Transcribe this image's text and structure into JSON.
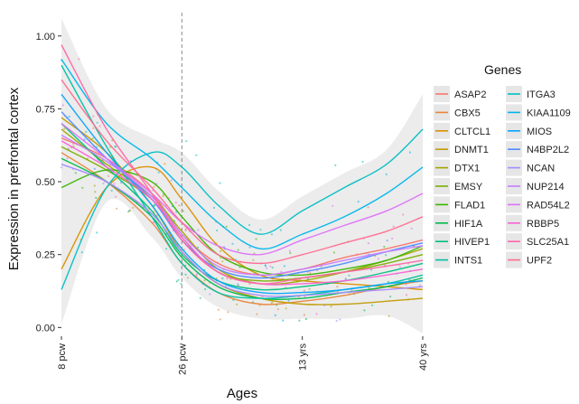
{
  "chart_data": {
    "type": "line",
    "xlabel": "Ages",
    "ylabel": "Expression in prefrontal cortex",
    "legend_title": "Genes",
    "legend_placement": "right",
    "grid": true,
    "x_ticks": [
      "8 pcw",
      "26 pcw",
      "13 yrs",
      "40 yrs"
    ],
    "x_tick_positions": [
      0,
      1,
      2,
      3
    ],
    "xlim": [
      0,
      3
    ],
    "ylim": [
      -0.03,
      1.08
    ],
    "y_ticks": [
      "0.00",
      "0.25",
      "0.50",
      "0.75",
      "1.00"
    ],
    "y_tick_values": [
      0,
      0.25,
      0.5,
      0.75,
      1.0
    ],
    "reference_line": {
      "x": 1,
      "style": "dashed"
    },
    "x": [
      0,
      0.375,
      0.75,
      1.0,
      1.3,
      1.65,
      2.0,
      2.35,
      2.7,
      3.0
    ],
    "series": [
      {
        "name": "ASAP2",
        "color": "#f8766d",
        "values": [
          0.65,
          0.58,
          0.46,
          0.32,
          0.22,
          0.18,
          0.2,
          0.24,
          0.27,
          0.3
        ]
      },
      {
        "name": "CBX5",
        "color": "#e8853a",
        "values": [
          0.6,
          0.5,
          0.36,
          0.22,
          0.12,
          0.08,
          0.09,
          0.11,
          0.14,
          0.16
        ]
      },
      {
        "name": "CLTCL1",
        "color": "#d89000",
        "values": [
          0.2,
          0.48,
          0.55,
          0.44,
          0.28,
          0.18,
          0.16,
          0.15,
          0.14,
          0.13
        ]
      },
      {
        "name": "DNMT1",
        "color": "#c09b00",
        "values": [
          0.72,
          0.6,
          0.42,
          0.26,
          0.15,
          0.1,
          0.08,
          0.08,
          0.09,
          0.1
        ]
      },
      {
        "name": "DTX1",
        "color": "#a3a500",
        "values": [
          0.68,
          0.56,
          0.45,
          0.33,
          0.2,
          0.15,
          0.16,
          0.19,
          0.23,
          0.27
        ]
      },
      {
        "name": "EMSY",
        "color": "#7cae00",
        "values": [
          0.62,
          0.54,
          0.44,
          0.31,
          0.19,
          0.16,
          0.17,
          0.19,
          0.22,
          0.25
        ]
      },
      {
        "name": "FLAD1",
        "color": "#39b600",
        "values": [
          0.48,
          0.54,
          0.5,
          0.38,
          0.25,
          0.19,
          0.18,
          0.2,
          0.23,
          0.28
        ]
      },
      {
        "name": "HIF1A",
        "color": "#00bb4e",
        "values": [
          0.58,
          0.5,
          0.38,
          0.24,
          0.14,
          0.1,
          0.1,
          0.12,
          0.14,
          0.17
        ]
      },
      {
        "name": "HIVEP1",
        "color": "#00bf7d",
        "values": [
          0.7,
          0.55,
          0.4,
          0.25,
          0.16,
          0.13,
          0.14,
          0.16,
          0.19,
          0.22
        ]
      },
      {
        "name": "INTS1",
        "color": "#00c1a3",
        "values": [
          0.9,
          0.62,
          0.38,
          0.22,
          0.12,
          0.1,
          0.11,
          0.13,
          0.15,
          0.18
        ]
      },
      {
        "name": "ITGA3",
        "color": "#00bfc4",
        "values": [
          0.13,
          0.48,
          0.6,
          0.55,
          0.42,
          0.32,
          0.4,
          0.48,
          0.56,
          0.68
        ]
      },
      {
        "name": "KIAA1109",
        "color": "#00b6eb",
        "values": [
          0.92,
          0.7,
          0.58,
          0.48,
          0.36,
          0.27,
          0.32,
          0.38,
          0.46,
          0.55
        ]
      },
      {
        "name": "MIOS",
        "color": "#06a4ff",
        "values": [
          0.8,
          0.6,
          0.42,
          0.27,
          0.16,
          0.12,
          0.12,
          0.13,
          0.15,
          0.16
        ]
      },
      {
        "name": "N4BP2L2",
        "color": "#4f8cff",
        "values": [
          0.74,
          0.58,
          0.44,
          0.3,
          0.2,
          0.17,
          0.19,
          0.22,
          0.26,
          0.29
        ]
      },
      {
        "name": "NCAN",
        "color": "#a58aff",
        "values": [
          0.56,
          0.5,
          0.39,
          0.26,
          0.15,
          0.11,
          0.11,
          0.12,
          0.13,
          0.14
        ]
      },
      {
        "name": "NUP214",
        "color": "#c77cff",
        "values": [
          0.66,
          0.57,
          0.45,
          0.32,
          0.21,
          0.18,
          0.2,
          0.23,
          0.26,
          0.28
        ]
      },
      {
        "name": "RAD54L2",
        "color": "#df70f8",
        "values": [
          0.7,
          0.58,
          0.46,
          0.36,
          0.28,
          0.25,
          0.3,
          0.35,
          0.4,
          0.46
        ]
      },
      {
        "name": "RBBP5",
        "color": "#fb61d7",
        "values": [
          0.64,
          0.55,
          0.44,
          0.31,
          0.19,
          0.15,
          0.15,
          0.16,
          0.18,
          0.2
        ]
      },
      {
        "name": "SLC25A1",
        "color": "#ff66a8",
        "values": [
          0.97,
          0.68,
          0.46,
          0.3,
          0.19,
          0.15,
          0.17,
          0.19,
          0.21,
          0.23
        ]
      },
      {
        "name": "UPF2",
        "color": "#ff6c91",
        "values": [
          0.85,
          0.64,
          0.48,
          0.36,
          0.25,
          0.22,
          0.25,
          0.29,
          0.33,
          0.38
        ]
      }
    ]
  }
}
